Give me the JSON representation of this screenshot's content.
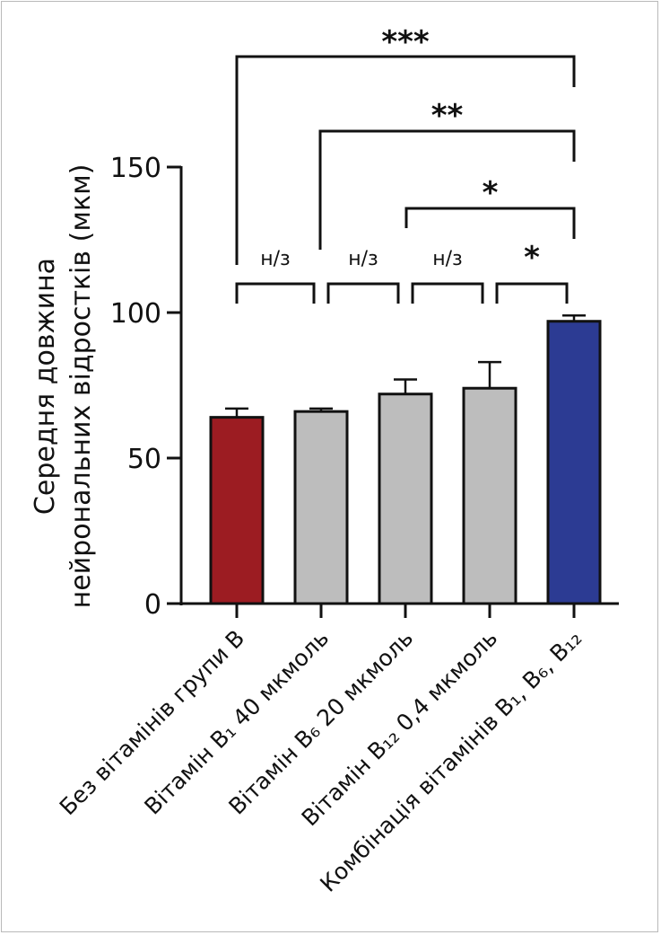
{
  "chart_data": {
    "type": "bar",
    "title": "",
    "ylabel_lines": [
      "Середня довжина",
      "нейрональних відростків (мкм)"
    ],
    "categories": [
      "Без вітамінів групи В",
      "Вітамін В₁ 40 мкмоль",
      "Вітамін В₆ 20 мкмоль",
      "Вітамін В₁₂ 0,4 мкмоль",
      "Комбінація вітамінів В₁, В₆, В₁₂"
    ],
    "values": [
      64,
      66,
      72,
      74,
      97
    ],
    "errors": [
      3,
      1,
      5,
      9,
      2
    ],
    "bar_colors": [
      "#9c1c22",
      "#bdbdbd",
      "#bdbdbd",
      "#bdbdbd",
      "#2c3b93"
    ],
    "ylim": [
      0,
      150
    ],
    "yticks": [
      0,
      50,
      100,
      150
    ],
    "grid": false,
    "comparisons": [
      {
        "from": 0,
        "to": 1,
        "label": "н/з"
      },
      {
        "from": 1,
        "to": 2,
        "label": "н/з"
      },
      {
        "from": 2,
        "to": 3,
        "label": "н/з"
      },
      {
        "from": 3,
        "to": 4,
        "label": "*"
      },
      {
        "from": 2,
        "to": 4,
        "label": "*"
      },
      {
        "from": 1,
        "to": 4,
        "label": "**"
      },
      {
        "from": 0,
        "to": 4,
        "label": "***"
      }
    ]
  }
}
